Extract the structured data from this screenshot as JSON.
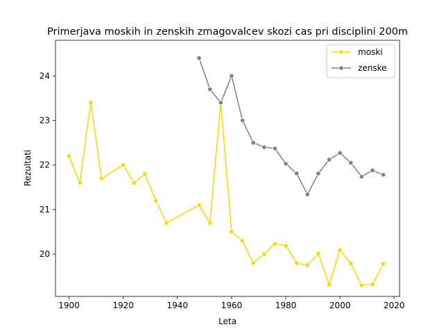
{
  "chart_data": {
    "type": "line",
    "title": "Primerjava moskih in zenskih zmagovalcev skozi cas pri disciplini 200m",
    "xlabel": "Leta",
    "ylabel": "Rezultati",
    "xlim": [
      1895,
      2022
    ],
    "ylim": [
      19.05,
      24.8
    ],
    "x_ticks": [
      1900,
      1920,
      1940,
      1960,
      1980,
      2000,
      2020
    ],
    "y_ticks": [
      20,
      21,
      22,
      23,
      24
    ],
    "grid": false,
    "legend_position": "top-right",
    "series": [
      {
        "name": "moski",
        "color": "#FFD700",
        "x": [
          1900,
          1904,
          1908,
          1912,
          1920,
          1924,
          1928,
          1932,
          1936,
          1948,
          1952,
          1956,
          1960,
          1964,
          1968,
          1972,
          1976,
          1980,
          1984,
          1988,
          1992,
          1996,
          2000,
          2004,
          2008,
          2012,
          2016
        ],
        "y": [
          22.2,
          21.6,
          23.4,
          21.7,
          22.0,
          21.6,
          21.8,
          21.2,
          20.7,
          21.1,
          20.7,
          23.4,
          20.5,
          20.3,
          19.8,
          20.0,
          20.23,
          20.19,
          19.8,
          19.75,
          20.01,
          19.32,
          20.09,
          19.79,
          19.3,
          19.32,
          19.78
        ]
      },
      {
        "name": "zenske",
        "color": "#808080",
        "x": [
          1948,
          1952,
          1956,
          1960,
          1964,
          1968,
          1972,
          1976,
          1980,
          1984,
          1988,
          1992,
          1996,
          2000,
          2004,
          2008,
          2012,
          2016
        ],
        "y": [
          24.4,
          23.7,
          23.4,
          24.0,
          23.0,
          22.5,
          22.4,
          22.37,
          22.03,
          21.81,
          21.34,
          21.81,
          22.12,
          22.27,
          22.05,
          21.74,
          21.88,
          21.78
        ]
      }
    ]
  }
}
